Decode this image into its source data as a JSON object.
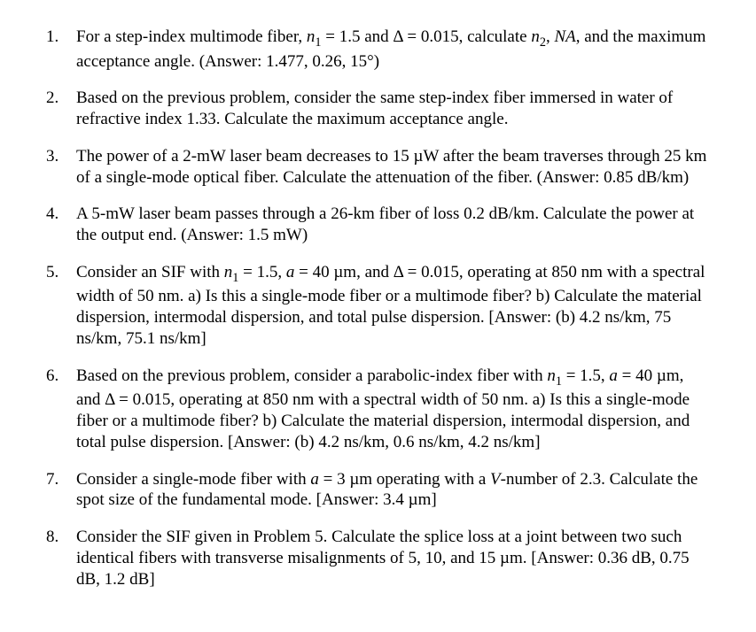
{
  "problems": [
    {
      "html": "For a step-index multimode fiber, <span class=\"ital\">n</span><span class=\"sub1\">1</span> = 1.5 and Δ = 0.015, calculate <span class=\"ital\">n</span><span class=\"sub1\">2</span>, <span class=\"ital\">NA</span>, and the maximum acceptance angle. (Answer: 1.477, 0.26, 15°)"
    },
    {
      "html": "Based on the previous problem, consider the same step-index fiber immersed in water of refractive index 1.33. Calculate the maximum acceptance angle."
    },
    {
      "html": "The power of a 2-mW laser beam decreases to 15 µW after the beam traverses through 25 km of a single-mode optical fiber. Calculate the attenuation of the fiber. (Answer: 0.85 dB/km)"
    },
    {
      "html": "A 5-mW laser beam passes through a 26-km fiber of loss 0.2 dB/km. Calculate the power at the output end. (Answer: 1.5 mW)"
    },
    {
      "html": "Consider an SIF with <span class=\"ital\">n</span><span class=\"sub1\">1</span> = 1.5, <span class=\"ital\">a</span> = 40 µm, and Δ = 0.015, operating at 850 nm with a spectral width of 50 nm. a) Is this a single-mode fiber or a multimode fiber? b) Calculate the material dispersion, intermodal dispersion, and total pulse dispersion. [Answer: (b) 4.2 ns/km, 75 ns/km, 75.1 ns/km]"
    },
    {
      "html": "Based on the previous problem, consider a parabolic-index fiber with <span class=\"ital\">n</span><span class=\"sub1\">1</span> = 1.5, <span class=\"ital\">a</span> = 40 µm, and Δ = 0.015, operating at 850 nm with a spectral width of 50 nm. a) Is this a single-mode fiber or a multimode fiber? b) Calculate the material dispersion, intermodal dispersion, and total pulse dispersion. [Answer: (b) 4.2 ns/km, 0.6 ns/km, 4.2 ns/km]"
    },
    {
      "html": "Consider a single-mode fiber with <span class=\"ital\">a</span> = 3 µm operating with a <span class=\"ital\">V</span>-number of 2.3. Calculate the spot size of the fundamental mode. [Answer: 3.4 µm]"
    },
    {
      "html": "Consider the SIF given in Problem 5. Calculate the splice loss at a joint between two such identical fibers with transverse misalignments of 5, 10, and 15 µm. [Answer: 0.36 dB, 0.75 dB, 1.2 dB]"
    }
  ]
}
